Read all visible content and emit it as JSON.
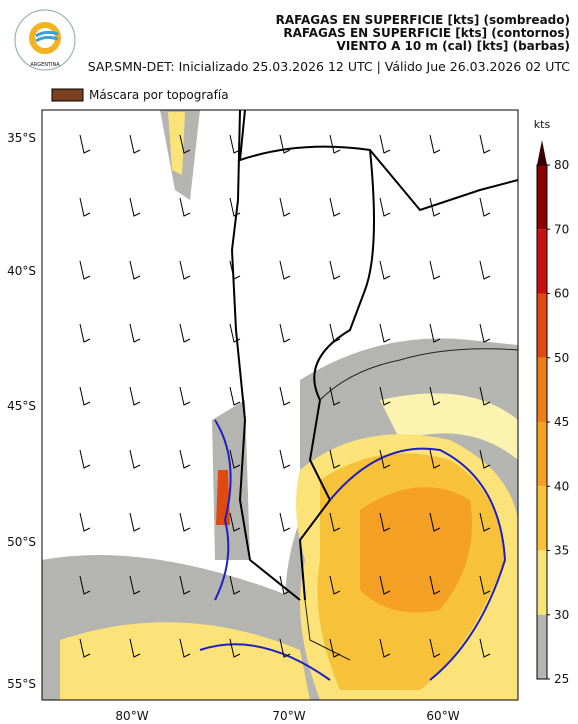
{
  "header": {
    "title_lines": [
      "RAFAGAS EN SUPERFICIE [kts] (sombreado)",
      "RAFAGAS EN SUPERFICIE [kts] (contornos)",
      "VIENTO A 10 m (cal) [kts] (barbas)"
    ],
    "subtitle": "SAP.SMN-DET: Inicializado 25.03.2026 12 UTC | Válido Jue 26.03.2026 02 UTC",
    "logo_text": "ARGENTINA"
  },
  "legend": {
    "label": "Máscara por topografía",
    "color": "#7a4020"
  },
  "colorbar": {
    "unit": "kts",
    "ticks": [
      80,
      70,
      60,
      50,
      45,
      40,
      35,
      30,
      25
    ],
    "colors": [
      "#8b0000",
      "#c81010",
      "#e04a10",
      "#ee7d1a",
      "#f3a024",
      "#f7c23a",
      "#fbe37a",
      "#fdf3b0"
    ],
    "low_color": "#b4b4b0"
  },
  "map": {
    "lat_labels": [
      "35°S",
      "40°S",
      "45°S",
      "50°S",
      "55°S"
    ],
    "lon_labels": [
      "80°W",
      "70°W",
      "60°W"
    ]
  }
}
